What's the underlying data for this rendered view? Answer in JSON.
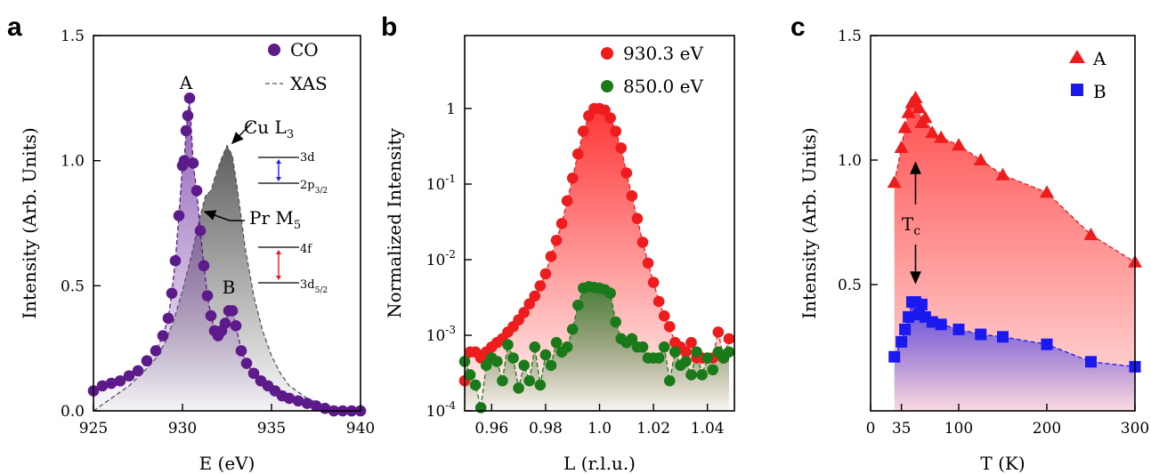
{
  "colors": {
    "purple": "#5c1a8a",
    "xas_gray": "#7a7a7a",
    "red": "#ee1c1c",
    "green": "#1a7a1a",
    "blue": "#1a1aee",
    "arrow_blue": "#2222dd",
    "arrow_red": "#dd2222"
  },
  "panels": {
    "a": "a",
    "b": "b",
    "c": "c"
  },
  "chart_data": [
    {
      "type": "scatter",
      "panel": "a",
      "xlabel": "E (eV)",
      "ylabel": "Intensity (Arb. Units)",
      "xlim": [
        925,
        940
      ],
      "ylim": [
        0,
        1.5
      ],
      "xticks": [
        "925",
        "930",
        "935",
        "940"
      ],
      "yticks": [
        "0.0",
        "0.5",
        "1.0",
        "1.5"
      ],
      "legend": [
        "CO",
        "XAS"
      ],
      "annotations": {
        "peakA": "A",
        "peakB": "B",
        "cu_base": "Cu L",
        "cu_sub": "3",
        "pr_base": "Pr M",
        "pr_sub": "5",
        "lvl_3d": "3d",
        "lvl_2p_base": "2p",
        "lvl_2p_sub": "3/2",
        "lvl_4f": "4f",
        "lvl_3d5_base": "3d",
        "lvl_3d5_sub": "5/2"
      },
      "series": [
        {
          "name": "CO",
          "x": [
            925,
            925.5,
            926,
            926.5,
            927,
            927.5,
            928,
            928.5,
            928.9,
            929.2,
            929.4,
            929.6,
            929.8,
            930.0,
            930.1,
            930.2,
            930.3,
            930.4,
            930.6,
            930.8,
            931.0,
            931.2,
            931.4,
            931.6,
            931.8,
            932.0,
            932.2,
            932.4,
            932.6,
            932.8,
            933.0,
            933.3,
            933.6,
            934.0,
            934.4,
            934.8,
            935.2,
            935.6,
            936.0,
            936.5,
            937.0,
            937.5,
            938.0,
            938.5,
            939.0,
            939.5,
            940.0
          ],
          "y": [
            0.08,
            0.1,
            0.11,
            0.12,
            0.14,
            0.16,
            0.2,
            0.24,
            0.3,
            0.37,
            0.47,
            0.6,
            0.78,
            0.98,
            1.0,
            1.12,
            1.18,
            1.25,
            0.99,
            0.88,
            0.72,
            0.58,
            0.46,
            0.38,
            0.32,
            0.3,
            0.32,
            0.35,
            0.4,
            0.4,
            0.34,
            0.24,
            0.19,
            0.15,
            0.12,
            0.1,
            0.08,
            0.06,
            0.05,
            0.04,
            0.03,
            0.02,
            0.01,
            0.0,
            0.0,
            0.0,
            0.0
          ]
        },
        {
          "name": "XAS",
          "x": [
            925,
            926,
            927,
            928,
            928.5,
            929,
            929.5,
            930,
            930.5,
            931,
            931.3,
            931.6,
            931.9,
            932.2,
            932.5,
            932.8,
            933.1,
            933.5,
            934,
            934.5,
            935,
            935.5,
            936,
            937,
            938,
            939,
            940
          ],
          "y": [
            0.0,
            0.05,
            0.1,
            0.17,
            0.21,
            0.27,
            0.36,
            0.48,
            0.62,
            0.78,
            0.86,
            0.88,
            0.95,
            1.01,
            1.06,
            1.02,
            0.88,
            0.66,
            0.46,
            0.32,
            0.22,
            0.15,
            0.1,
            0.05,
            0.02,
            0.01,
            0.0
          ]
        }
      ]
    },
    {
      "type": "scatter",
      "panel": "b",
      "xlabel": "L (r.l.u.)",
      "ylabel": "Normalized Intensity",
      "xlim": [
        0.95,
        1.05
      ],
      "yscale": "log",
      "ylim": [
        0.0001,
        2
      ],
      "xticks": [
        "0.96",
        "0.98",
        "1.0",
        "1.02",
        "1.04"
      ],
      "yticks": [
        {
          "base": "10",
          "exp": "-4"
        },
        {
          "base": "10",
          "exp": "-3"
        },
        {
          "base": "10",
          "exp": "-2"
        },
        {
          "base": "10",
          "exp": "-1"
        },
        {
          "base": "1",
          "exp": ""
        }
      ],
      "legend": [
        "930.3 eV",
        "850.0 eV"
      ],
      "series": [
        {
          "name": "930.3 eV",
          "x": [
            0.95,
            0.952,
            0.954,
            0.956,
            0.958,
            0.96,
            0.962,
            0.964,
            0.966,
            0.968,
            0.97,
            0.972,
            0.974,
            0.976,
            0.978,
            0.98,
            0.982,
            0.984,
            0.986,
            0.988,
            0.99,
            0.992,
            0.994,
            0.996,
            0.998,
            1.0,
            1.002,
            1.004,
            1.006,
            1.008,
            1.01,
            1.012,
            1.014,
            1.016,
            1.018,
            1.02,
            1.022,
            1.024,
            1.026,
            1.028,
            1.03,
            1.032,
            1.034,
            1.036,
            1.038,
            1.04,
            1.042,
            1.044,
            1.046,
            1.048
          ],
          "y": [
            0.00025,
            0.0006,
            0.0006,
            0.0005,
            0.0006,
            0.0007,
            0.0008,
            0.0009,
            0.0011,
            0.0013,
            0.0016,
            0.002,
            0.0026,
            0.0033,
            0.0045,
            0.0065,
            0.011,
            0.018,
            0.03,
            0.06,
            0.12,
            0.25,
            0.5,
            0.8,
            1.0,
            1.0,
            0.95,
            0.75,
            0.5,
            0.3,
            0.14,
            0.07,
            0.035,
            0.017,
            0.009,
            0.005,
            0.0028,
            0.0018,
            0.0013,
            0.0008,
            0.0007,
            0.0006,
            0.0008,
            0.0005,
            0.0005,
            0.0005,
            0.0005,
            0.0011,
            0.0005,
            0.0009
          ]
        },
        {
          "name": "850.0 eV",
          "x": [
            0.95,
            0.952,
            0.954,
            0.956,
            0.958,
            0.96,
            0.962,
            0.964,
            0.966,
            0.968,
            0.97,
            0.972,
            0.974,
            0.976,
            0.978,
            0.98,
            0.982,
            0.984,
            0.986,
            0.988,
            0.99,
            0.992,
            0.994,
            0.996,
            0.998,
            1.0,
            1.002,
            1.004,
            1.006,
            1.008,
            1.01,
            1.012,
            1.014,
            1.016,
            1.018,
            1.02,
            1.022,
            1.024,
            1.026,
            1.028,
            1.03,
            1.032,
            1.034,
            1.036,
            1.038,
            1.04,
            1.042,
            1.044,
            1.046,
            1.048
          ],
          "y": [
            0.00045,
            0.0003,
            0.00022,
            0.00011,
            0.0004,
            0.0005,
            0.00045,
            0.00025,
            0.00075,
            0.0005,
            0.0002,
            0.0004,
            0.00025,
            0.0007,
            0.00022,
            0.00055,
            0.0004,
            0.0008,
            0.0006,
            0.0007,
            0.0012,
            0.0025,
            0.0042,
            0.0044,
            0.0043,
            0.0042,
            0.004,
            0.0036,
            0.0015,
            0.0009,
            0.0008,
            0.0009,
            0.0007,
            0.0007,
            0.0005,
            0.0005,
            0.0005,
            0.0007,
            0.00025,
            0.0006,
            0.0004,
            0.00045,
            0.0003,
            0.0006,
            0.0003,
            0.0005,
            0.00035,
            0.0006,
            0.0005,
            0.0006
          ]
        }
      ]
    },
    {
      "type": "scatter",
      "panel": "c",
      "xlabel": "T (K)",
      "ylabel": "Intensity (Arb. Units)",
      "xlim": [
        0,
        300
      ],
      "ylim": [
        0.0,
        1.5
      ],
      "xticks": [
        "0",
        "35",
        "100",
        "200",
        "300"
      ],
      "yticks": [
        "0.5",
        "1.0",
        "1.5"
      ],
      "legend": [
        "A",
        "B"
      ],
      "annotations": {
        "tc_base": "T",
        "tc_sub": "c"
      },
      "series": [
        {
          "name": "A",
          "x": [
            27,
            35,
            39,
            43,
            47,
            51,
            55,
            58,
            62,
            70,
            80,
            100,
            125,
            150,
            200,
            250,
            300
          ],
          "y": [
            0.91,
            1.05,
            1.13,
            1.19,
            1.23,
            1.25,
            1.21,
            1.15,
            1.17,
            1.11,
            1.09,
            1.06,
            1.0,
            0.94,
            0.87,
            0.7,
            0.59
          ]
        },
        {
          "name": "B",
          "x": [
            27,
            35,
            39,
            43,
            47,
            51,
            55,
            58,
            62,
            70,
            80,
            100,
            125,
            150,
            200,
            250,
            300
          ],
          "y": [
            0.21,
            0.27,
            0.32,
            0.37,
            0.43,
            0.43,
            0.38,
            0.42,
            0.37,
            0.35,
            0.34,
            0.32,
            0.3,
            0.29,
            0.26,
            0.19,
            0.17
          ]
        }
      ]
    }
  ]
}
